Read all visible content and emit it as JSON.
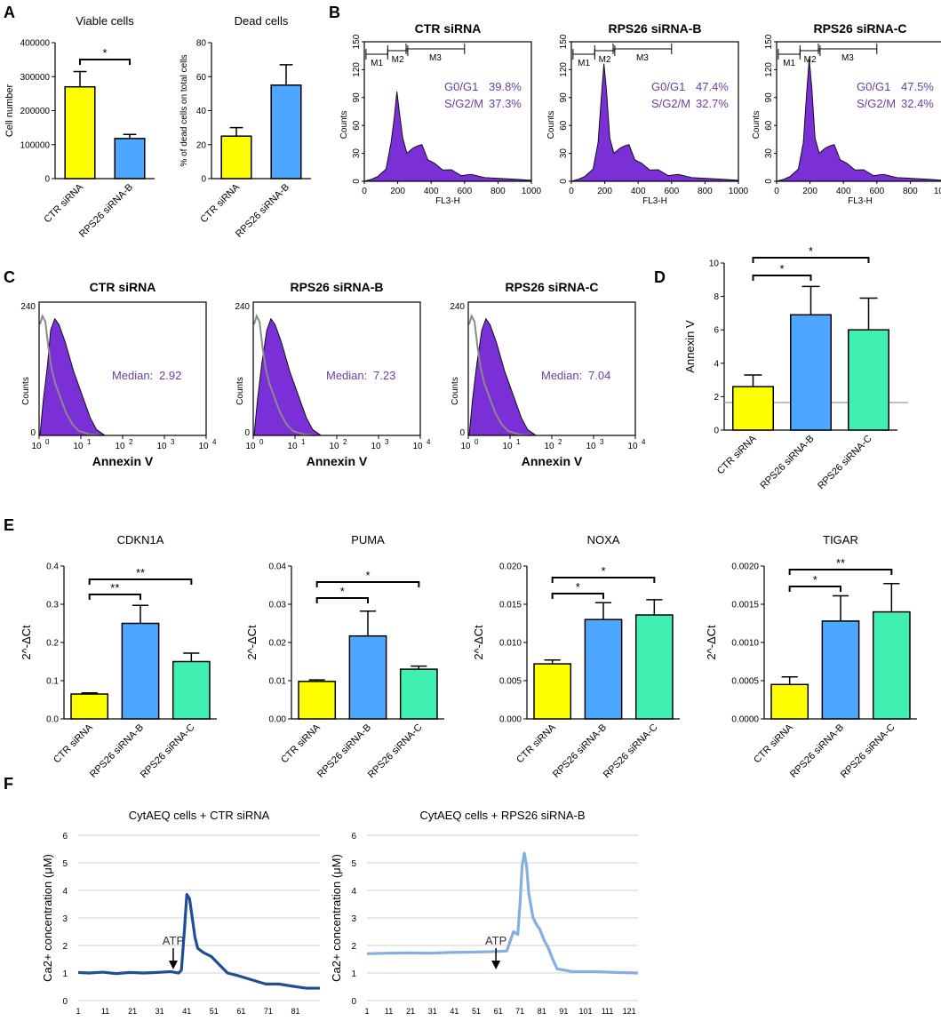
{
  "figure": {
    "panel_labels": [
      "A",
      "B",
      "C",
      "D",
      "E",
      "F"
    ]
  },
  "colors": {
    "yellow": "#ffff00",
    "blue": "#4da6ff",
    "green": "#40f0b0",
    "hist_fill": "#7b2fd6",
    "ctrl_line": "#8a8a8a",
    "stats_text": "#6a3fa0",
    "ctr_trace": "#1f4e96",
    "rps_trace": "#86aee0"
  },
  "chart_data": [
    {
      "id": "A1",
      "type": "bar",
      "title": "Viable cells",
      "ylabel": "Cell number",
      "categories": [
        "CTR siRNA",
        "RPS26 siRNA-B"
      ],
      "values": [
        270000,
        118000
      ],
      "errors": [
        45000,
        12000
      ],
      "colors": [
        "#ffff00",
        "#4da6ff"
      ],
      "ylim": [
        0,
        400000
      ],
      "yticks": [
        "0",
        "100000",
        "200000",
        "300000",
        "400000"
      ],
      "tick_values": [
        0,
        100000,
        200000,
        300000,
        400000
      ],
      "significance": [
        {
          "from": 0,
          "to": 1,
          "label": "*"
        }
      ]
    },
    {
      "id": "A2",
      "type": "bar",
      "title": "Dead cells",
      "ylabel": "% of dead cells on total cells",
      "categories": [
        "CTR siRNA",
        "RPS26 siRNA-B"
      ],
      "values": [
        25,
        55
      ],
      "errors": [
        5,
        12
      ],
      "colors": [
        "#ffff00",
        "#4da6ff"
      ],
      "ylim": [
        0,
        80
      ],
      "yticks": [
        "0",
        "20",
        "40",
        "60",
        "80"
      ],
      "tick_values": [
        0,
        20,
        40,
        60,
        80
      ],
      "significance": []
    },
    {
      "id": "B",
      "type": "histogram",
      "xlabel": "FL3-H",
      "ylabel": "Counts",
      "xticks": [
        "0",
        "200",
        "400",
        "600",
        "800",
        "1000"
      ],
      "yticks": [
        "0",
        "30",
        "60",
        "90",
        "120",
        "150"
      ],
      "gates": [
        "M1",
        "M2",
        "M3"
      ],
      "panels": [
        {
          "title": "CTR siRNA",
          "g0g1_label": "G0/G1",
          "g0g1": "39.8%",
          "sg2m_label": "S/G2/M",
          "sg2m": "37.3%",
          "peak": 95
        },
        {
          "title": "RPS26 siRNA-B",
          "g0g1_label": "G0/G1",
          "g0g1": "47.4%",
          "sg2m_label": "S/G2/M",
          "sg2m": "32.7%",
          "peak": 125
        },
        {
          "title": "RPS26 siRNA-C",
          "g0g1_label": "G0/G1",
          "g0g1": "47.5%",
          "sg2m_label": "S/G2/M",
          "sg2m": "32.4%",
          "peak": 130
        }
      ]
    },
    {
      "id": "C",
      "type": "histogram",
      "xlabel": "Annexin V",
      "ylabel": "Counts",
      "ytop": "240",
      "ybottom": "0",
      "panels": [
        {
          "title": "CTR siRNA",
          "median_label": "Median:",
          "median": "2.92",
          "shift": 2.92
        },
        {
          "title": "RPS26 siRNA-B",
          "median_label": "Median:",
          "median": "7.23",
          "shift": 7.23
        },
        {
          "title": "RPS26 siRNA-C",
          "median_label": "Median:",
          "median": "7.04",
          "shift": 7.04
        }
      ]
    },
    {
      "id": "D",
      "type": "bar",
      "ylabel": "Annexin V",
      "categories": [
        "CTR siRNA",
        "RPS26 siRNA-B",
        "RPS26 siRNA-C"
      ],
      "values": [
        2.6,
        6.9,
        6.0
      ],
      "errors": [
        0.7,
        1.7,
        1.9
      ],
      "colors": [
        "#ffff00",
        "#4da6ff",
        "#40f0b0"
      ],
      "ylim": [
        0,
        10
      ],
      "yticks": [
        "0",
        "2",
        "4",
        "6",
        "8",
        "10"
      ],
      "tick_values": [
        0,
        2,
        4,
        6,
        8,
        10
      ],
      "reference_line": 1.65,
      "significance": [
        {
          "from": 0,
          "to": 1,
          "label": "*"
        },
        {
          "from": 0,
          "to": 2,
          "label": "*"
        }
      ]
    },
    {
      "id": "E1",
      "type": "bar",
      "title": "CDKN1A",
      "ylabel": "2^-ΔCt",
      "categories": [
        "CTR siRNA",
        "RPS26 siRNA-B",
        "RPS26 siRNA-C"
      ],
      "values": [
        0.065,
        0.25,
        0.15
      ],
      "errors": [
        0.003,
        0.047,
        0.022
      ],
      "colors": [
        "#ffff00",
        "#4da6ff",
        "#40f0b0"
      ],
      "ylim": [
        0,
        0.4
      ],
      "yticks": [
        "0.0",
        "0.1",
        "0.2",
        "0.3",
        "0.4"
      ],
      "tick_values": [
        0,
        0.1,
        0.2,
        0.3,
        0.4
      ],
      "significance": [
        {
          "from": 0,
          "to": 1,
          "label": "**"
        },
        {
          "from": 0,
          "to": 2,
          "label": "**"
        }
      ]
    },
    {
      "id": "E2",
      "type": "bar",
      "title": "PUMA",
      "ylabel": "2^-ΔCt",
      "categories": [
        "CTR siRNA",
        "RPS26 siRNA-B",
        "RPS26 siRNA-C"
      ],
      "values": [
        0.0098,
        0.0217,
        0.013
      ],
      "errors": [
        0.0004,
        0.0065,
        0.0008
      ],
      "colors": [
        "#ffff00",
        "#4da6ff",
        "#40f0b0"
      ],
      "ylim": [
        0,
        0.04
      ],
      "yticks": [
        "0.00",
        "0.01",
        "0.02",
        "0.03",
        "0.04"
      ],
      "tick_values": [
        0,
        0.01,
        0.02,
        0.03,
        0.04
      ],
      "significance": [
        {
          "from": 0,
          "to": 1,
          "label": "*"
        },
        {
          "from": 0,
          "to": 2,
          "label": "*"
        }
      ]
    },
    {
      "id": "E3",
      "type": "bar",
      "title": "NOXA",
      "ylabel": "2^-ΔCt",
      "categories": [
        "CTR siRNA",
        "RPS26 siRNA-B",
        "RPS26 siRNA-C"
      ],
      "values": [
        0.0072,
        0.013,
        0.0136
      ],
      "errors": [
        0.0005,
        0.0022,
        0.002
      ],
      "colors": [
        "#ffff00",
        "#4da6ff",
        "#40f0b0"
      ],
      "ylim": [
        0,
        0.02
      ],
      "yticks": [
        "0.000",
        "0.005",
        "0.010",
        "0.015",
        "0.020"
      ],
      "tick_values": [
        0,
        0.005,
        0.01,
        0.015,
        0.02
      ],
      "significance": [
        {
          "from": 0,
          "to": 1,
          "label": "*"
        },
        {
          "from": 0,
          "to": 2,
          "label": "*"
        }
      ]
    },
    {
      "id": "E4",
      "type": "bar",
      "title": "TIGAR",
      "ylabel": "2^-ΔCt",
      "categories": [
        "CTR siRNA",
        "RPS26 siRNA-B",
        "RPS26 siRNA-C"
      ],
      "values": [
        0.00045,
        0.00128,
        0.0014
      ],
      "errors": [
        0.0001,
        0.00033,
        0.00037
      ],
      "colors": [
        "#ffff00",
        "#4da6ff",
        "#40f0b0"
      ],
      "ylim": [
        0,
        0.002
      ],
      "yticks": [
        "0.0000",
        "0.0005",
        "0.0010",
        "0.0015",
        "0.0020"
      ],
      "tick_values": [
        0,
        0.0005,
        0.001,
        0.0015,
        0.002
      ],
      "significance": [
        {
          "from": 0,
          "to": 1,
          "label": "*"
        },
        {
          "from": 0,
          "to": 2,
          "label": "**"
        }
      ]
    },
    {
      "id": "F1",
      "type": "line",
      "title": "CytAEQ cells + CTR siRNA",
      "ylabel": "Ca2+ concentration (μM)",
      "xticks": [
        "1",
        "11",
        "21",
        "31",
        "41",
        "51",
        "61",
        "71",
        "81"
      ],
      "yticks": [
        "0",
        "1",
        "2",
        "3",
        "4",
        "5",
        "6"
      ],
      "xlim": [
        1,
        90
      ],
      "ylim": [
        0,
        6
      ],
      "annotation": {
        "label": "ATP",
        "x": 36
      },
      "color": "#1f4e96",
      "points": [
        [
          1,
          1.02
        ],
        [
          5,
          1.0
        ],
        [
          10,
          1.03
        ],
        [
          15,
          0.98
        ],
        [
          20,
          1.02
        ],
        [
          25,
          1.0
        ],
        [
          30,
          1.02
        ],
        [
          35,
          1.05
        ],
        [
          38,
          1.0
        ],
        [
          39,
          1.1
        ],
        [
          40,
          2.4
        ],
        [
          41,
          3.85
        ],
        [
          42,
          3.7
        ],
        [
          43,
          3.0
        ],
        [
          44,
          2.3
        ],
        [
          45,
          1.9
        ],
        [
          47,
          1.75
        ],
        [
          50,
          1.6
        ],
        [
          53,
          1.3
        ],
        [
          56,
          1.0
        ],
        [
          60,
          0.9
        ],
        [
          65,
          0.75
        ],
        [
          70,
          0.6
        ],
        [
          75,
          0.6
        ],
        [
          80,
          0.52
        ],
        [
          85,
          0.45
        ],
        [
          90,
          0.45
        ]
      ]
    },
    {
      "id": "F2",
      "type": "line",
      "title": "CytAEQ cells + RPS26 siRNA-B",
      "ylabel": "Ca2+ concentration (μM)",
      "xticks": [
        "1",
        "11",
        "21",
        "31",
        "41",
        "51",
        "61",
        "71",
        "81",
        "91",
        "101",
        "111",
        "121"
      ],
      "yticks": [
        "0",
        "1",
        "2",
        "3",
        "4",
        "5",
        "6"
      ],
      "xlim": [
        1,
        125
      ],
      "ylim": [
        0,
        6
      ],
      "annotation": {
        "label": "ATP",
        "x": 60
      },
      "color": "#86aee0",
      "points": [
        [
          1,
          1.7
        ],
        [
          10,
          1.72
        ],
        [
          20,
          1.73
        ],
        [
          30,
          1.72
        ],
        [
          40,
          1.75
        ],
        [
          50,
          1.76
        ],
        [
          60,
          1.78
        ],
        [
          65,
          1.8
        ],
        [
          68,
          2.5
        ],
        [
          70,
          2.4
        ],
        [
          71,
          3.5
        ],
        [
          72,
          4.9
        ],
        [
          73,
          5.35
        ],
        [
          74,
          4.9
        ],
        [
          75,
          3.9
        ],
        [
          77,
          3.0
        ],
        [
          79,
          2.7
        ],
        [
          80,
          2.6
        ],
        [
          82,
          2.2
        ],
        [
          84,
          1.9
        ],
        [
          86,
          1.5
        ],
        [
          88,
          1.15
        ],
        [
          95,
          1.05
        ],
        [
          105,
          1.05
        ],
        [
          115,
          1.02
        ],
        [
          125,
          1.0
        ]
      ]
    }
  ]
}
